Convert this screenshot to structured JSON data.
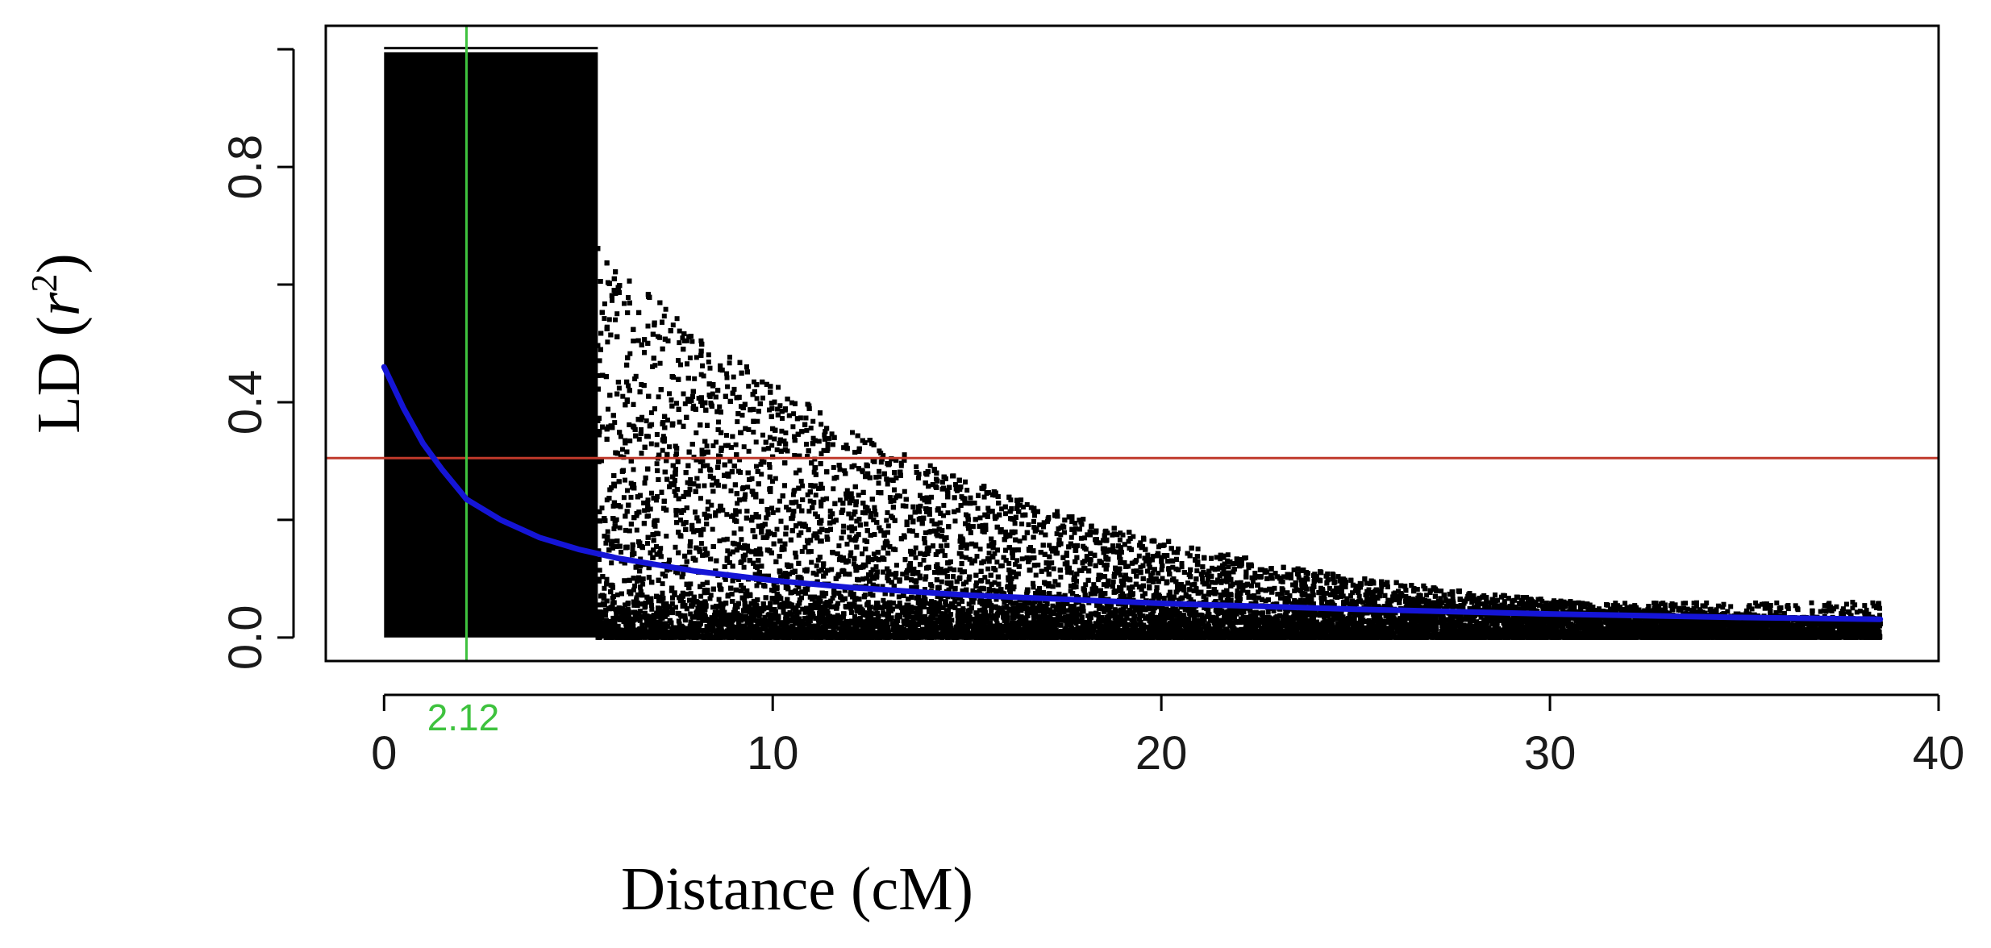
{
  "chart_data": {
    "type": "scatter",
    "xlabel": "Distance (cM)",
    "ylabel": {
      "main": "LD (",
      "var": "r",
      "sup": "2",
      "close": ")"
    },
    "xlim": [
      -1.5,
      40
    ],
    "ylim": [
      -0.04,
      1.04
    ],
    "x_ticks": [
      0,
      10,
      20,
      30,
      40
    ],
    "y_ticks": [
      0.0,
      0.4,
      0.8
    ],
    "y_minor_ticks": [
      0.2,
      0.6,
      1.0
    ],
    "points_description": "dense LD decay scatter between 0 and ~38.5 cM; solid block up to ~5.5 cM",
    "solid_block": {
      "x": [
        0,
        5.5
      ],
      "y": [
        0,
        0.995
      ]
    },
    "decay_curve": {
      "color": "#1515d6",
      "x": [
        0,
        0.5,
        1,
        1.5,
        2,
        2.12,
        3,
        4,
        5,
        6,
        8,
        10,
        12,
        15,
        20,
        25,
        30,
        35,
        38.5
      ],
      "y": [
        0.46,
        0.39,
        0.33,
        0.285,
        0.245,
        0.235,
        0.2,
        0.17,
        0.15,
        0.135,
        0.113,
        0.097,
        0.085,
        0.072,
        0.058,
        0.048,
        0.04,
        0.034,
        0.031
      ]
    },
    "hline": {
      "y": 0.305,
      "color": "#c0392b"
    },
    "vline": {
      "x": 2.12,
      "label": "2.12",
      "color": "#3ec23e"
    }
  }
}
